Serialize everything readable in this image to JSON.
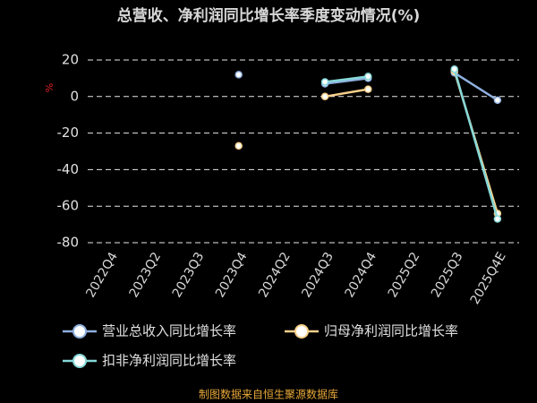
{
  "chart_data": {
    "type": "line",
    "title": "总营收、净利润同比增长率季度变动情况(%)",
    "y_label": "%",
    "categories": [
      "2022Q4",
      "2023Q2",
      "2023Q3",
      "2023Q4",
      "2024Q2",
      "2024Q3",
      "2024Q4",
      "2025Q2",
      "2025Q3",
      "2025Q4E"
    ],
    "series": [
      {
        "name": "营业总收入同比增长率",
        "color": "#8fb0e0",
        "values": [
          null,
          null,
          null,
          12,
          null,
          7,
          10,
          null,
          13,
          -2
        ]
      },
      {
        "name": "归母净利润同比增长率",
        "color": "#f7cf8a",
        "values": [
          null,
          null,
          null,
          -27,
          null,
          0,
          4,
          null,
          14,
          -64
        ]
      },
      {
        "name": "扣非净利润同比增长率",
        "color": "#86d8d8",
        "values": [
          null,
          null,
          null,
          null,
          null,
          8,
          11,
          null,
          15,
          -67
        ]
      }
    ],
    "ylim": [
      -80,
      20
    ],
    "yticks": [
      20,
      0,
      -20,
      -40,
      -60,
      -80
    ],
    "grid": true,
    "source": "制图数据来自恒生聚源数据库"
  }
}
